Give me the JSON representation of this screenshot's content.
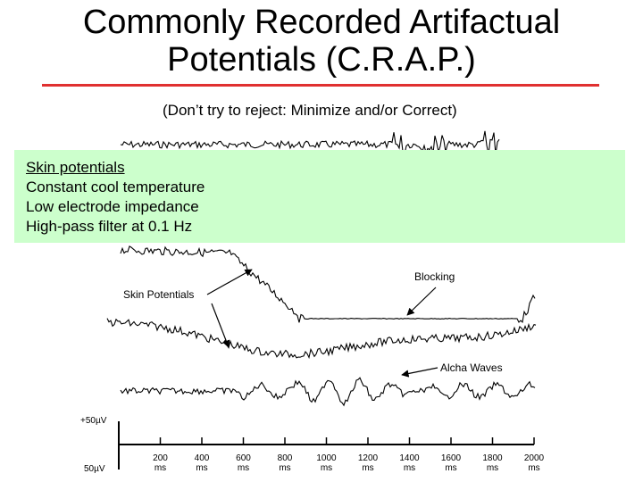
{
  "slide": {
    "title_lines": [
      "Commonly Recorded Artifactual",
      "Potentials (C.R.A.P.)"
    ],
    "subtitle": "(Don’t try to reject: Minimize and/or Correct)"
  },
  "callout": {
    "heading": "Skin potentials",
    "items": [
      "Constant cool temperature",
      "Low electrode impedance",
      "High-pass filter at 0.1 Hz"
    ]
  },
  "figure": {
    "annotations": {
      "blocking": "Blocking",
      "skin_potentials": "Skin Potentials",
      "alpha_waves": "Alcha Waves"
    },
    "scale": {
      "top": "+50µV",
      "bottom": "50µV"
    },
    "time_axis": [
      {
        "value": "200",
        "unit": "ms"
      },
      {
        "value": "400",
        "unit": "ms"
      },
      {
        "value": "600",
        "unit": "ms"
      },
      {
        "value": "800",
        "unit": "ms"
      },
      {
        "value": "1000",
        "unit": "ms"
      },
      {
        "value": "1200",
        "unit": "ms"
      },
      {
        "value": "1400",
        "unit": "ms"
      },
      {
        "value": "1600",
        "unit": "ms"
      },
      {
        "value": "1800",
        "unit": "ms"
      },
      {
        "value": "2000",
        "unit": "ms"
      }
    ]
  }
}
